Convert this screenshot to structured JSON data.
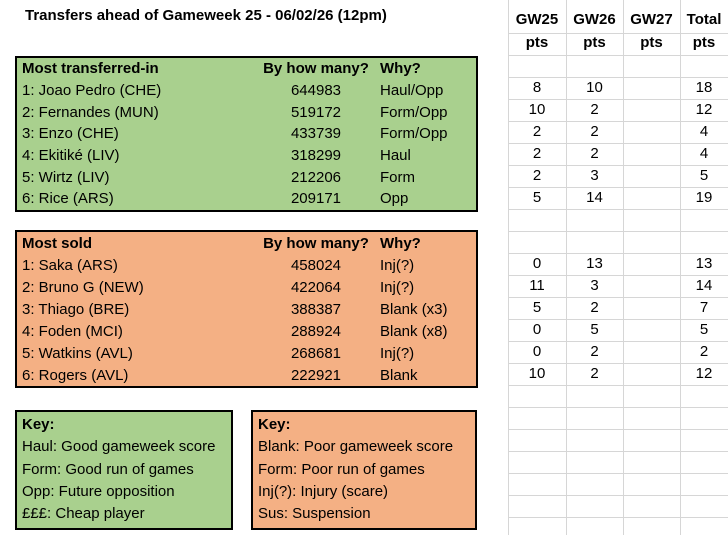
{
  "title": "Transfers ahead of Gameweek 25 - 06/02/26 (12pm)",
  "colors": {
    "green_fill": "#a9d08e",
    "orange_fill": "#f4b084",
    "gridline": "#d6d6d6",
    "border": "#000000"
  },
  "points_columns": [
    {
      "label": "GW25",
      "unit": "pts"
    },
    {
      "label": "GW26",
      "unit": "pts"
    },
    {
      "label": "GW27",
      "unit": "pts"
    },
    {
      "label": "Total",
      "unit": "pts"
    }
  ],
  "transferred_in": {
    "title": "Most transferred-in",
    "col_count": "By how many?",
    "col_why": "Why?",
    "rows": [
      {
        "player": "1: Joao Pedro (CHE)",
        "count": "644983",
        "why": "Haul/Opp",
        "pts": [
          "8",
          "10",
          "",
          "18"
        ]
      },
      {
        "player": "2: Fernandes (MUN)",
        "count": "519172",
        "why": "Form/Opp",
        "pts": [
          "10",
          "2",
          "",
          "12"
        ]
      },
      {
        "player": "3: Enzo (CHE)",
        "count": "433739",
        "why": "Form/Opp",
        "pts": [
          "2",
          "2",
          "",
          "4"
        ]
      },
      {
        "player": "4: Ekitiké (LIV)",
        "count": "318299",
        "why": "Haul",
        "pts": [
          "2",
          "2",
          "",
          "4"
        ]
      },
      {
        "player": "5: Wirtz (LIV)",
        "count": "212206",
        "why": "Form",
        "pts": [
          "2",
          "3",
          "",
          "5"
        ]
      },
      {
        "player": "6: Rice (ARS)",
        "count": "209171",
        "why": "Opp",
        "pts": [
          "5",
          "14",
          "",
          "19"
        ]
      }
    ]
  },
  "most_sold": {
    "title": "Most sold",
    "col_count": "By how many?",
    "col_why": "Why?",
    "rows": [
      {
        "player": "1: Saka (ARS)",
        "count": "458024",
        "why": "Inj(?)",
        "pts": [
          "0",
          "13",
          "",
          "13"
        ]
      },
      {
        "player": "2: Bruno G (NEW)",
        "count": "422064",
        "why": "Inj(?)",
        "pts": [
          "11",
          "3",
          "",
          "14"
        ]
      },
      {
        "player": "3: Thiago (BRE)",
        "count": "388387",
        "why": "Blank (x3)",
        "pts": [
          "5",
          "2",
          "",
          "7"
        ]
      },
      {
        "player": "4: Foden (MCI)",
        "count": "288924",
        "why": "Blank (x8)",
        "pts": [
          "0",
          "5",
          "",
          "5"
        ]
      },
      {
        "player": "5: Watkins (AVL)",
        "count": "268681",
        "why": "Inj(?)",
        "pts": [
          "0",
          "2",
          "",
          "2"
        ]
      },
      {
        "player": "6: Rogers (AVL)",
        "count": "222921",
        "why": "Blank",
        "pts": [
          "10",
          "2",
          "",
          "12"
        ]
      }
    ]
  },
  "keys": [
    {
      "title": "Key:",
      "lines": [
        "Haul: Good gameweek score",
        "Form: Good run of games",
        "Opp: Future opposition",
        "£££: Cheap player"
      ]
    },
    {
      "title": "Key:",
      "lines": [
        "Blank: Poor gameweek score",
        "Form: Poor run of games",
        "Inj(?): Injury (scare)",
        "Sus: Suspension"
      ]
    }
  ]
}
